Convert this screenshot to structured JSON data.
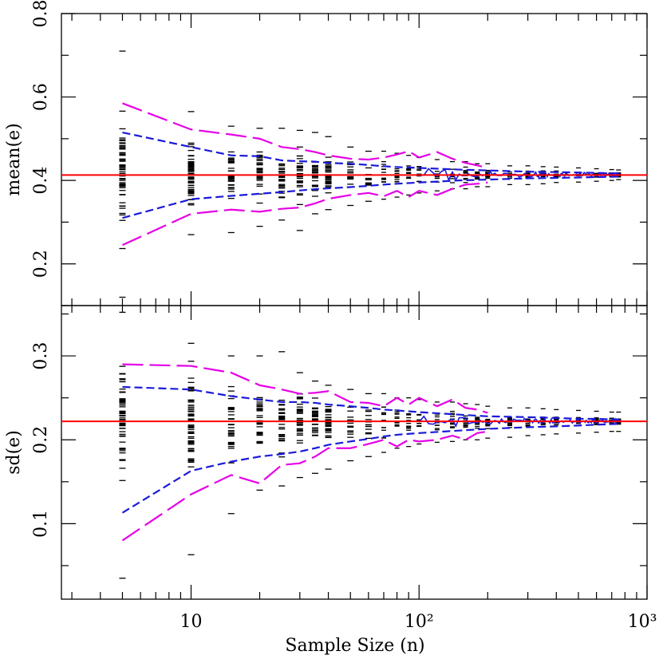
{
  "chart_data": [
    {
      "type": "scatter",
      "panel": "top",
      "title": "",
      "xlabel": "Sample Size (n)",
      "ylabel": "mean(e)",
      "xscale": "log",
      "xlim": [
        2.7,
        1000
      ],
      "ylim": [
        0.1,
        0.8
      ],
      "x_tick_labels": [
        {
          "value": 10,
          "label": "10"
        },
        {
          "value": 100,
          "label": "10²"
        },
        {
          "value": 1000,
          "label": "10³"
        }
      ],
      "y_tick_labels": [
        {
          "value": 0.2,
          "label": "0.2"
        },
        {
          "value": 0.4,
          "label": "0.4"
        },
        {
          "value": 0.6,
          "label": "0.6"
        },
        {
          "value": 0.8,
          "label": "0.8"
        }
      ],
      "reference_line": {
        "y": 0.413,
        "color": "#ff0000"
      },
      "scatter_columns": [
        {
          "x": 5,
          "low": 0.12,
          "high": 0.71
        },
        {
          "x": 10,
          "low": 0.27,
          "high": 0.565
        },
        {
          "x": 15,
          "low": 0.275,
          "high": 0.53
        },
        {
          "x": 20,
          "low": 0.29,
          "high": 0.525
        },
        {
          "x": 25,
          "low": 0.305,
          "high": 0.525
        },
        {
          "x": 30,
          "low": 0.28,
          "high": 0.52
        },
        {
          "x": 35,
          "low": 0.32,
          "high": 0.515
        },
        {
          "x": 40,
          "low": 0.33,
          "high": 0.505
        },
        {
          "x": 50,
          "low": 0.34,
          "high": 0.48
        },
        {
          "x": 60,
          "low": 0.35,
          "high": 0.47
        },
        {
          "x": 70,
          "low": 0.355,
          "high": 0.47
        },
        {
          "x": 80,
          "low": 0.36,
          "high": 0.465
        },
        {
          "x": 90,
          "low": 0.365,
          "high": 0.46
        },
        {
          "x": 100,
          "low": 0.37,
          "high": 0.455
        },
        {
          "x": 120,
          "low": 0.375,
          "high": 0.45
        },
        {
          "x": 140,
          "low": 0.38,
          "high": 0.445
        },
        {
          "x": 160,
          "low": 0.38,
          "high": 0.445
        },
        {
          "x": 180,
          "low": 0.385,
          "high": 0.44
        },
        {
          "x": 200,
          "low": 0.385,
          "high": 0.44
        },
        {
          "x": 250,
          "low": 0.39,
          "high": 0.435
        },
        {
          "x": 300,
          "low": 0.39,
          "high": 0.435
        },
        {
          "x": 350,
          "low": 0.392,
          "high": 0.433
        },
        {
          "x": 400,
          "low": 0.395,
          "high": 0.432
        },
        {
          "x": 500,
          "low": 0.396,
          "high": 0.43
        },
        {
          "x": 600,
          "low": 0.398,
          "high": 0.428
        },
        {
          "x": 700,
          "low": 0.4,
          "high": 0.426
        },
        {
          "x": 750,
          "low": 0.402,
          "high": 0.425
        }
      ],
      "series": [
        {
          "color": "#1a1adb",
          "style": "dashed",
          "x": [
            5,
            10,
            15,
            20,
            25,
            30,
            35,
            40,
            50,
            60,
            70,
            80,
            100,
            150,
            200,
            300,
            400,
            500,
            600,
            750
          ],
          "y": [
            0.515,
            0.48,
            0.46,
            0.458,
            0.448,
            0.446,
            0.445,
            0.442,
            0.44,
            0.437,
            0.434,
            0.432,
            0.43,
            0.426,
            0.424,
            0.421,
            0.42,
            0.419,
            0.418,
            0.417
          ]
        },
        {
          "color": "#1a1adb",
          "style": "dashed",
          "x": [
            5,
            10,
            15,
            20,
            25,
            30,
            35,
            40,
            50,
            60,
            70,
            80,
            100,
            150,
            200,
            300,
            400,
            500,
            600,
            750
          ],
          "y": [
            0.31,
            0.355,
            0.363,
            0.368,
            0.372,
            0.376,
            0.379,
            0.381,
            0.384,
            0.387,
            0.39,
            0.392,
            0.395,
            0.4,
            0.402,
            0.405,
            0.406,
            0.407,
            0.408,
            0.409
          ]
        },
        {
          "color": "#e600e6",
          "style": "long-dashed",
          "x": [
            5,
            10,
            15,
            20,
            25,
            30,
            35,
            40,
            50,
            60,
            70,
            80,
            90,
            100,
            120,
            140,
            160,
            180,
            200
          ],
          "y": [
            0.585,
            0.522,
            0.51,
            0.5,
            0.48,
            0.475,
            0.468,
            0.46,
            0.452,
            0.45,
            0.455,
            0.462,
            0.47,
            0.455,
            0.468,
            0.452,
            0.442,
            0.436,
            0.43
          ]
        },
        {
          "color": "#e600e6",
          "style": "long-dashed",
          "x": [
            5,
            10,
            15,
            20,
            25,
            30,
            35,
            40,
            50,
            60,
            70,
            80,
            90,
            100,
            120,
            140,
            160,
            180,
            200
          ],
          "y": [
            0.245,
            0.32,
            0.33,
            0.325,
            0.332,
            0.335,
            0.345,
            0.356,
            0.365,
            0.37,
            0.362,
            0.375,
            0.36,
            0.375,
            0.365,
            0.38,
            0.39,
            0.392,
            0.395
          ]
        }
      ]
    },
    {
      "type": "scatter",
      "panel": "bottom",
      "title": "",
      "xlabel": "Sample Size (n)",
      "ylabel": "sd(e)",
      "xscale": "log",
      "xlim": [
        2.7,
        1000
      ],
      "ylim": [
        0.01,
        0.36
      ],
      "x_tick_labels": [
        {
          "value": 10,
          "label": "10"
        },
        {
          "value": 100,
          "label": "10²"
        },
        {
          "value": 1000,
          "label": "10³"
        }
      ],
      "y_tick_labels": [
        {
          "value": 0.1,
          "label": "0.1"
        },
        {
          "value": 0.2,
          "label": "0.2"
        },
        {
          "value": 0.3,
          "label": "0.3"
        }
      ],
      "reference_line": {
        "y": 0.222,
        "color": "#ff0000"
      },
      "scatter_columns": [
        {
          "x": 5,
          "low": 0.035,
          "high": 0.352
        },
        {
          "x": 10,
          "low": 0.063,
          "high": 0.315
        },
        {
          "x": 15,
          "low": 0.112,
          "high": 0.3
        },
        {
          "x": 20,
          "low": 0.14,
          "high": 0.3
        },
        {
          "x": 25,
          "low": 0.145,
          "high": 0.305
        },
        {
          "x": 30,
          "low": 0.155,
          "high": 0.28
        },
        {
          "x": 35,
          "low": 0.16,
          "high": 0.27
        },
        {
          "x": 40,
          "low": 0.165,
          "high": 0.265
        },
        {
          "x": 50,
          "low": 0.175,
          "high": 0.26
        },
        {
          "x": 60,
          "low": 0.18,
          "high": 0.255
        },
        {
          "x": 70,
          "low": 0.185,
          "high": 0.255
        },
        {
          "x": 80,
          "low": 0.19,
          "high": 0.25
        },
        {
          "x": 90,
          "low": 0.192,
          "high": 0.25
        },
        {
          "x": 100,
          "low": 0.195,
          "high": 0.248
        },
        {
          "x": 120,
          "low": 0.197,
          "high": 0.245
        },
        {
          "x": 140,
          "low": 0.198,
          "high": 0.245
        },
        {
          "x": 160,
          "low": 0.2,
          "high": 0.243
        },
        {
          "x": 180,
          "low": 0.2,
          "high": 0.242
        },
        {
          "x": 200,
          "low": 0.202,
          "high": 0.24
        },
        {
          "x": 250,
          "low": 0.203,
          "high": 0.238
        },
        {
          "x": 300,
          "low": 0.205,
          "high": 0.238
        },
        {
          "x": 350,
          "low": 0.206,
          "high": 0.237
        },
        {
          "x": 400,
          "low": 0.207,
          "high": 0.236
        },
        {
          "x": 500,
          "low": 0.208,
          "high": 0.235
        },
        {
          "x": 600,
          "low": 0.209,
          "high": 0.234
        },
        {
          "x": 700,
          "low": 0.21,
          "high": 0.233
        },
        {
          "x": 750,
          "low": 0.21,
          "high": 0.233
        }
      ],
      "series": [
        {
          "color": "#1a1adb",
          "style": "dashed",
          "x": [
            5,
            10,
            15,
            20,
            25,
            30,
            35,
            40,
            50,
            60,
            70,
            80,
            100,
            150,
            200,
            300,
            400,
            500,
            600,
            750
          ],
          "y": [
            0.263,
            0.26,
            0.252,
            0.248,
            0.245,
            0.245,
            0.244,
            0.242,
            0.24,
            0.238,
            0.236,
            0.235,
            0.233,
            0.23,
            0.228,
            0.227,
            0.226,
            0.225,
            0.225,
            0.224
          ]
        },
        {
          "color": "#1a1adb",
          "style": "dashed",
          "x": [
            5,
            10,
            15,
            20,
            25,
            30,
            35,
            40,
            50,
            60,
            70,
            80,
            100,
            150,
            200,
            300,
            400,
            500,
            600,
            750
          ],
          "y": [
            0.113,
            0.163,
            0.174,
            0.18,
            0.183,
            0.186,
            0.19,
            0.194,
            0.198,
            0.201,
            0.204,
            0.206,
            0.208,
            0.211,
            0.213,
            0.215,
            0.216,
            0.217,
            0.218,
            0.219
          ]
        },
        {
          "color": "#e600e6",
          "style": "long-dashed",
          "x": [
            5,
            10,
            15,
            20,
            25,
            30,
            35,
            40,
            50,
            60,
            70,
            80,
            90,
            100,
            120,
            140,
            160,
            180,
            200
          ],
          "y": [
            0.29,
            0.288,
            0.28,
            0.265,
            0.26,
            0.255,
            0.256,
            0.258,
            0.245,
            0.244,
            0.24,
            0.25,
            0.242,
            0.25,
            0.24,
            0.248,
            0.238,
            0.236,
            0.232
          ]
        },
        {
          "color": "#e600e6",
          "style": "long-dashed",
          "x": [
            5,
            10,
            15,
            20,
            25,
            30,
            35,
            40,
            50,
            60,
            70,
            80,
            90,
            100,
            120,
            140,
            160,
            180,
            200
          ],
          "y": [
            0.08,
            0.135,
            0.158,
            0.148,
            0.17,
            0.172,
            0.18,
            0.19,
            0.19,
            0.195,
            0.2,
            0.192,
            0.2,
            0.198,
            0.2,
            0.205,
            0.2,
            0.208,
            0.21
          ]
        }
      ]
    }
  ]
}
